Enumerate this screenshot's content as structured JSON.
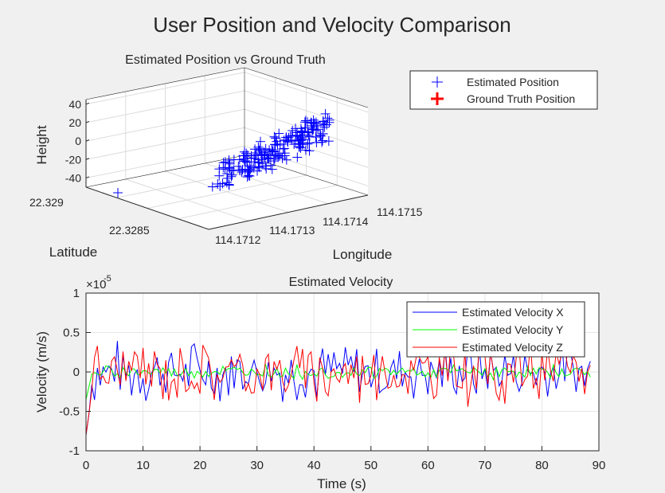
{
  "figure": {
    "title": "User Position and Velocity Comparison"
  },
  "chart_data": [
    {
      "type": "scatter",
      "title": "Estimated Position vs Ground Truth",
      "xlabel": "Longitude",
      "ylabel": "Latitude",
      "zlabel": "Height",
      "x_ticks": [
        "114.1712",
        "114.1713",
        "114.1714",
        "114.1715"
      ],
      "y_ticks": [
        "22.3285",
        "22.329"
      ],
      "z_ticks": [
        "40",
        "20",
        "0",
        "-20",
        "-40"
      ],
      "zlim": [
        -50,
        45
      ],
      "view": "3d",
      "grid": true,
      "legend_position": "top-right",
      "series": [
        {
          "name": "Estimated Position",
          "marker": "+",
          "color": "#0000ff",
          "points_note_count": 200
        },
        {
          "name": "Ground Truth Position",
          "marker": "+",
          "color": "#ff0000"
        }
      ]
    },
    {
      "type": "line",
      "title": "Estimated Velocity",
      "xlabel": "Time (s)",
      "ylabel": "Velocity (m/s)",
      "exponent_label": "×10",
      "exponent_power": "-5",
      "xlim": [
        0,
        90
      ],
      "ylim": [
        -1,
        1
      ],
      "x_ticks": [
        "0",
        "10",
        "20",
        "30",
        "40",
        "50",
        "60",
        "70",
        "80",
        "90"
      ],
      "y_ticks": [
        "1",
        "0.5",
        "0",
        "-0.5",
        "-1"
      ],
      "grid": true,
      "legend_position": "top-right",
      "series": [
        {
          "name": "Estimated Velocity X",
          "color": "#0000ff",
          "amplitude": 0.35
        },
        {
          "name": "Estimated Velocity Y",
          "color": "#00ff00",
          "amplitude": 0.08
        },
        {
          "name": "Estimated Velocity Z",
          "color": "#ff0000",
          "amplitude": 0.35
        }
      ],
      "t_end": 88.6
    }
  ]
}
